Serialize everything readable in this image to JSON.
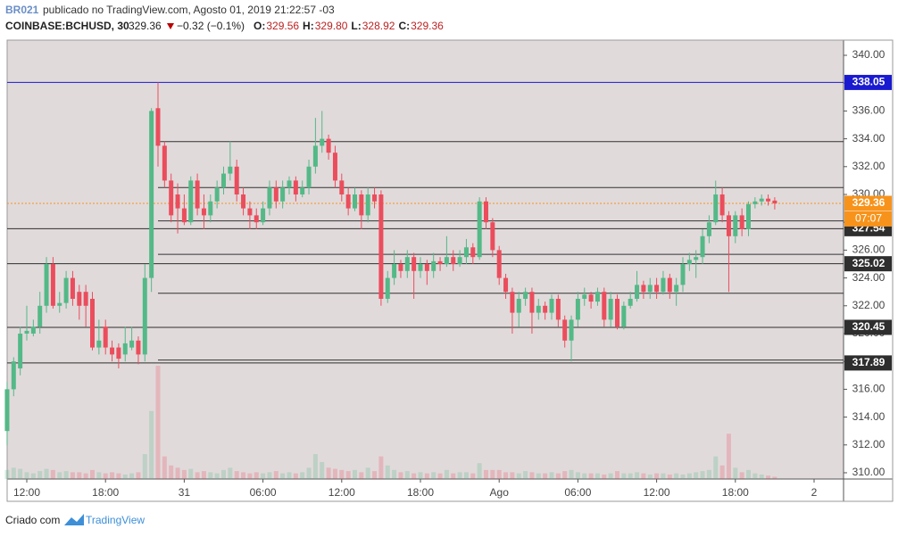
{
  "header": {
    "author": "BR021",
    "published": "publicado no TradingView.com, Agosto 01, 2019 21:22:57 -03",
    "symbol": "COINBASE:BCHUSD, 30",
    "last": "329.36",
    "change": "−0.32 (−0.1%)",
    "ohlc": [
      {
        "key": "O:",
        "value": "329.56"
      },
      {
        "key": "H:",
        "value": "329.80"
      },
      {
        "key": "L:",
        "value": "328.92"
      },
      {
        "key": "C:",
        "value": "329.36"
      }
    ]
  },
  "footer": {
    "made": "Criado com",
    "brand": "TradingView"
  },
  "chart_data": {
    "type": "candlestick",
    "categories": [
      null,
      null,
      null,
      "12:00",
      null,
      null,
      null,
      null,
      null,
      null,
      null,
      null,
      null,
      null,
      null,
      "18:00",
      null,
      null,
      null,
      null,
      null,
      null,
      null,
      null,
      null,
      null,
      null,
      "31",
      null,
      null,
      null,
      null,
      null,
      null,
      null,
      null,
      null,
      null,
      null,
      "06:00",
      null,
      null,
      null,
      null,
      null,
      null,
      null,
      null,
      null,
      null,
      null,
      "12:00",
      null,
      null,
      null,
      null,
      null,
      null,
      null,
      null,
      null,
      null,
      null,
      "18:00",
      null,
      null,
      null,
      null,
      null,
      null,
      null,
      null,
      null,
      null,
      null,
      "Ago",
      null,
      null,
      null,
      null,
      null,
      null,
      null,
      null,
      null,
      null,
      null,
      "06:00",
      null,
      null,
      null,
      null,
      null,
      null,
      null,
      null,
      null,
      null,
      null,
      "12:00",
      null,
      null,
      null,
      null,
      null,
      null,
      null,
      null,
      null,
      null,
      null,
      "18:00",
      null,
      null,
      null,
      null,
      null,
      null,
      null,
      null,
      null,
      null,
      null,
      "2"
    ],
    "open": [
      313,
      316,
      317.5,
      320,
      320,
      320.5,
      322,
      325,
      322,
      322.2,
      324,
      323,
      323,
      322.5,
      319,
      320.5,
      319,
      319,
      318.5,
      319,
      319.5,
      318.5,
      324,
      336.2,
      333.5,
      331,
      330,
      329,
      328,
      331,
      329,
      328.5,
      329.5,
      330.5,
      331.5,
      332,
      330,
      329,
      328.5,
      328,
      329,
      330.5,
      329.5,
      330.5,
      331,
      330,
      330.5,
      332,
      333.5,
      334,
      333,
      331,
      330,
      329,
      330,
      328.5,
      330,
      330,
      322.5,
      324,
      325,
      324.5,
      325.5,
      324.5,
      325,
      324.5,
      325.2,
      325,
      325.5,
      325,
      325.5,
      326.2,
      325.5,
      329.5,
      328,
      326,
      324,
      323,
      321.5,
      322.5,
      323,
      321.5,
      322,
      321.5,
      322.5,
      321,
      319.5,
      321,
      322.5,
      322.8,
      322.3,
      323,
      321,
      322.5,
      320.5,
      322,
      322.5,
      323.5,
      323,
      323.5,
      323,
      324,
      323,
      323.5,
      325,
      325.3,
      325.5,
      327,
      328,
      330,
      328.5,
      327,
      328.5,
      327.5,
      329.3,
      329.5,
      329.7,
      329.56,
      null,
      null,
      null,
      null,
      null,
      null
    ],
    "high": [
      316.5,
      318.3,
      320.5,
      322,
      321,
      323,
      325.5,
      325.5,
      323,
      324.5,
      324.5,
      323.5,
      323.5,
      323,
      321,
      321,
      319.5,
      319.3,
      320.5,
      320.5,
      319.8,
      325,
      336.2,
      338.05,
      333.8,
      331.5,
      330.8,
      330,
      331.3,
      331.5,
      330,
      330,
      331,
      332,
      333.8,
      332.5,
      330.5,
      329.5,
      329,
      329.5,
      331,
      331,
      331,
      331.3,
      331.3,
      331,
      332.5,
      335.5,
      336,
      334.3,
      333.5,
      331.5,
      330.5,
      330.5,
      330.3,
      330.5,
      330.5,
      330.3,
      324.5,
      326,
      325.3,
      326,
      325.8,
      325.5,
      325.3,
      325.8,
      325.5,
      327,
      326,
      326,
      326.8,
      326.5,
      329.8,
      329.8,
      328.3,
      326.3,
      324.3,
      323.3,
      323,
      323.3,
      323.3,
      322.5,
      322.3,
      322.8,
      322.8,
      321.3,
      321.3,
      323,
      323.3,
      323,
      323.3,
      323.3,
      323,
      322.8,
      322.3,
      323,
      324.5,
      323.8,
      324,
      324,
      324.5,
      324.3,
      324,
      325.5,
      325.8,
      326,
      327.5,
      328.5,
      331,
      330.5,
      328.8,
      328.8,
      329,
      329.5,
      329.8,
      330,
      330,
      329.8,
      null,
      null,
      null,
      null,
      null,
      null
    ],
    "low": [
      312,
      315.5,
      317,
      319.5,
      319.8,
      320,
      321.5,
      321.8,
      321.5,
      321.8,
      322,
      321,
      320.5,
      318.8,
      318.5,
      318.5,
      318,
      317.5,
      318,
      318.8,
      317.8,
      318,
      323,
      332,
      330.5,
      328,
      327.2,
      327.8,
      327.8,
      328.5,
      327.5,
      328,
      329,
      330,
      331,
      329.5,
      328.5,
      327.5,
      327.5,
      327.8,
      328.5,
      329,
      329,
      330,
      329.5,
      329.8,
      330,
      331.5,
      333,
      332.5,
      330.5,
      329.5,
      328.5,
      328.8,
      327.5,
      328,
      329,
      322,
      322.2,
      323.5,
      324,
      324,
      322.5,
      324,
      323.5,
      324,
      324.5,
      324.8,
      324.5,
      324.8,
      325,
      325,
      325.3,
      327.5,
      325.5,
      323.5,
      322.5,
      320,
      320.5,
      322,
      320,
      321,
      321,
      321,
      320.5,
      319,
      318,
      320.5,
      322,
      321.8,
      322,
      320.5,
      320.5,
      320.3,
      320.3,
      321.8,
      322.3,
      322.5,
      322.5,
      322.5,
      322.8,
      322.5,
      322,
      323,
      324.5,
      324,
      325,
      326.5,
      327.8,
      328,
      323,
      326.5,
      327,
      327,
      329,
      329.2,
      329.2,
      328.92,
      null,
      null,
      null,
      null,
      null,
      null
    ],
    "close": [
      316,
      318,
      320,
      320.2,
      320.5,
      322,
      325,
      322,
      322.2,
      324,
      322.5,
      322,
      322,
      319,
      319.5,
      319,
      318.5,
      318.2,
      319.3,
      319.5,
      318.5,
      324,
      336,
      333.5,
      331,
      328.5,
      329,
      328,
      331,
      329,
      328.5,
      329.5,
      330.5,
      331.5,
      332,
      330,
      329,
      328.5,
      328,
      329,
      330.5,
      329.5,
      330.5,
      331,
      330,
      330.5,
      332,
      333.5,
      334,
      333,
      331,
      330,
      329,
      330,
      328.5,
      330,
      329.5,
      322.5,
      324,
      325,
      324.5,
      325.5,
      324.5,
      325,
      324.5,
      325.2,
      325,
      325.5,
      325,
      325.5,
      326.2,
      325.5,
      329.5,
      328,
      326,
      324,
      323,
      321.5,
      322.5,
      323,
      321.5,
      322,
      321.5,
      322.5,
      321,
      319.5,
      321,
      322.5,
      322.8,
      322.3,
      323,
      321,
      322.5,
      320.5,
      322,
      322.5,
      323.5,
      323,
      323.5,
      323,
      324,
      323,
      323.5,
      325,
      325.3,
      325.5,
      327,
      328,
      330,
      328.5,
      327,
      328.5,
      327.5,
      329.3,
      329.5,
      329.7,
      329.5,
      329.36,
      null,
      null,
      null,
      null,
      null,
      null
    ],
    "volume": [
      8,
      10,
      9,
      6,
      5,
      7,
      9,
      8,
      6,
      7,
      6,
      6,
      5,
      8,
      6,
      5,
      6,
      5,
      4,
      5,
      6,
      22,
      60,
      100,
      20,
      12,
      10,
      8,
      9,
      6,
      7,
      6,
      5,
      8,
      10,
      7,
      6,
      5,
      6,
      5,
      6,
      7,
      5,
      6,
      5,
      6,
      10,
      22,
      15,
      10,
      9,
      8,
      7,
      8,
      6,
      10,
      7,
      20,
      12,
      8,
      6,
      7,
      5,
      6,
      5,
      6,
      5,
      8,
      5,
      6,
      6,
      5,
      14,
      8,
      8,
      8,
      6,
      6,
      5,
      7,
      6,
      5,
      5,
      6,
      5,
      7,
      8,
      6,
      5,
      5,
      5,
      4,
      5,
      7,
      5,
      5,
      6,
      5,
      4,
      5,
      5,
      4,
      5,
      4,
      5,
      6,
      7,
      8,
      20,
      12,
      40,
      10,
      6,
      8,
      5,
      4,
      3,
      2,
      null,
      null,
      null,
      null,
      null,
      null
    ],
    "up_color": "#53b987",
    "down_color": "#eb4d5c",
    "ylim": [
      309.55,
      341.09
    ],
    "yticks": [
      {
        "value": 310,
        "label": "310.00"
      },
      {
        "value": 312,
        "label": "312.00"
      },
      {
        "value": 314,
        "label": "314.00"
      },
      {
        "value": 316,
        "label": "316.00"
      },
      {
        "value": 318,
        "label": "318.00"
      },
      {
        "value": 320,
        "label": "320.00"
      },
      {
        "value": 322,
        "label": "322.00"
      },
      {
        "value": 324,
        "label": "324.00"
      },
      {
        "value": 326,
        "label": "326.00"
      },
      {
        "value": 328,
        "label": "328.00"
      },
      {
        "value": 330,
        "label": "330.00"
      },
      {
        "value": 332,
        "label": "332.00"
      },
      {
        "value": 334,
        "label": "334.00"
      },
      {
        "value": 336,
        "label": "336.00"
      },
      {
        "value": 338,
        "label": "338.00"
      },
      {
        "value": 340,
        "label": "340.00"
      }
    ],
    "levels": [
      {
        "value": 333.8
      },
      {
        "value": 330.5
      },
      {
        "value": 328.1
      },
      {
        "value": 325.7
      },
      {
        "value": 322.9
      },
      {
        "value": 318.1
      },
      {
        "value": 338.05,
        "label": "338.05",
        "color": "#1a1ad0"
      },
      {
        "value": 327.54,
        "label": "327.54",
        "color": "#2e2e2e"
      },
      {
        "value": 325.02,
        "label": "325.02",
        "color": "#2e2e2e"
      },
      {
        "value": 320.45,
        "label": "320.45",
        "color": "#2e2e2e"
      },
      {
        "value": 317.89,
        "label": "317.89",
        "color": "#2e2e2e"
      }
    ],
    "last": 329.36,
    "countdown": "07:07",
    "last_color": "#f7931a"
  }
}
